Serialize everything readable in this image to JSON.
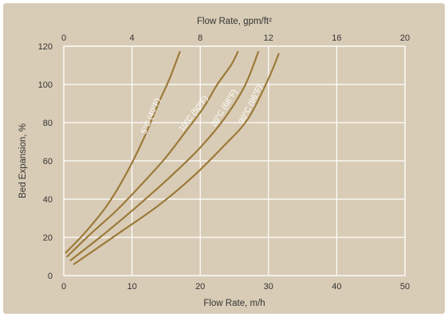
{
  "chart_data": {
    "type": "line",
    "xlabel": "Flow Rate, m/h",
    "x2label": "Flow Rate, gpm/ft²",
    "ylabel": "Bed Expansion, %",
    "xlim": [
      0,
      50
    ],
    "x2lim": [
      0,
      20
    ],
    "ylim": [
      0,
      120
    ],
    "xticks": [
      0,
      10,
      20,
      30,
      40,
      50
    ],
    "x2ticks": [
      0,
      4,
      8,
      12,
      16,
      20
    ],
    "yticks": [
      0,
      20,
      40,
      60,
      80,
      100,
      120
    ],
    "grid": true,
    "series": [
      {
        "name": "5°C (40°F)",
        "x": [
          0.3,
          3,
          6,
          8,
          10,
          12,
          14,
          15.5,
          17
        ],
        "y": [
          12,
          22,
          35,
          46,
          59,
          74,
          91,
          103,
          117
        ]
      },
      {
        "name": "10°C (50°F)",
        "x": [
          0.5,
          4,
          8,
          12,
          15,
          18,
          20.5,
          22.5,
          24.5,
          25.5
        ],
        "y": [
          10,
          22,
          35,
          50,
          62,
          76,
          88,
          100,
          110,
          117
        ]
      },
      {
        "name": "20°C (68°F)",
        "x": [
          1,
          6,
          11,
          16,
          20,
          23.5,
          26.5,
          28.5
        ],
        "y": [
          8,
          22,
          37,
          53,
          67,
          82,
          99,
          117
        ]
      },
      {
        "name": "30°C (86°F)",
        "x": [
          1.5,
          8,
          14,
          19,
          23.5,
          27,
          30,
          31.5
        ],
        "y": [
          6,
          22,
          37,
          52,
          68,
          82,
          103,
          116
        ]
      }
    ]
  },
  "colors": {
    "panel": "#d9ccb6",
    "plot": "#d9ccb6",
    "grid": "#ffffff",
    "curve": "#9c7a3a",
    "text": "#333333"
  }
}
